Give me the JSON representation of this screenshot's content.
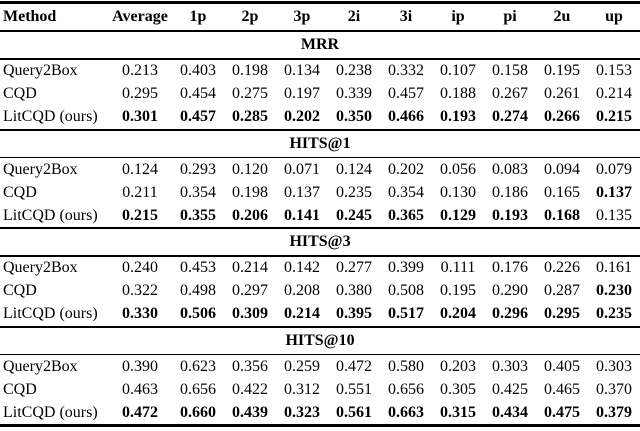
{
  "colors": {
    "text": "#000000",
    "background": "#ffffff",
    "rule": "#000000"
  },
  "table": {
    "columns": [
      "Method",
      "Average",
      "1p",
      "2p",
      "3p",
      "2i",
      "3i",
      "ip",
      "pi",
      "2u",
      "up"
    ],
    "sections": [
      {
        "title": "MRR",
        "rows": [
          {
            "method": "Query2Box",
            "values": [
              "0.213",
              "0.403",
              "0.198",
              "0.134",
              "0.238",
              "0.332",
              "0.107",
              "0.158",
              "0.195",
              "0.153"
            ],
            "bold": [
              0,
              0,
              0,
              0,
              0,
              0,
              0,
              0,
              0,
              0
            ]
          },
          {
            "method": "CQD",
            "values": [
              "0.295",
              "0.454",
              "0.275",
              "0.197",
              "0.339",
              "0.457",
              "0.188",
              "0.267",
              "0.261",
              "0.214"
            ],
            "bold": [
              0,
              0,
              0,
              0,
              0,
              0,
              0,
              0,
              0,
              0
            ]
          },
          {
            "method": "LitCQD (ours)",
            "values": [
              "0.301",
              "0.457",
              "0.285",
              "0.202",
              "0.350",
              "0.466",
              "0.193",
              "0.274",
              "0.266",
              "0.215"
            ],
            "bold": [
              1,
              1,
              1,
              1,
              1,
              1,
              1,
              1,
              1,
              1
            ]
          }
        ]
      },
      {
        "title": "HITS@1",
        "rows": [
          {
            "method": "Query2Box",
            "values": [
              "0.124",
              "0.293",
              "0.120",
              "0.071",
              "0.124",
              "0.202",
              "0.056",
              "0.083",
              "0.094",
              "0.079"
            ],
            "bold": [
              0,
              0,
              0,
              0,
              0,
              0,
              0,
              0,
              0,
              0
            ]
          },
          {
            "method": "CQD",
            "values": [
              "0.211",
              "0.354",
              "0.198",
              "0.137",
              "0.235",
              "0.354",
              "0.130",
              "0.186",
              "0.165",
              "0.137"
            ],
            "bold": [
              0,
              0,
              0,
              0,
              0,
              0,
              0,
              0,
              0,
              1
            ]
          },
          {
            "method": "LitCQD (ours)",
            "values": [
              "0.215",
              "0.355",
              "0.206",
              "0.141",
              "0.245",
              "0.365",
              "0.129",
              "0.193",
              "0.168",
              "0.135"
            ],
            "bold": [
              1,
              1,
              1,
              1,
              1,
              1,
              1,
              1,
              1,
              0
            ]
          }
        ]
      },
      {
        "title": "HITS@3",
        "rows": [
          {
            "method": "Query2Box",
            "values": [
              "0.240",
              "0.453",
              "0.214",
              "0.142",
              "0.277",
              "0.399",
              "0.111",
              "0.176",
              "0.226",
              "0.161"
            ],
            "bold": [
              0,
              0,
              0,
              0,
              0,
              0,
              0,
              0,
              0,
              0
            ]
          },
          {
            "method": "CQD",
            "values": [
              "0.322",
              "0.498",
              "0.297",
              "0.208",
              "0.380",
              "0.508",
              "0.195",
              "0.290",
              "0.287",
              "0.230"
            ],
            "bold": [
              0,
              0,
              0,
              0,
              0,
              0,
              0,
              0,
              0,
              1
            ]
          },
          {
            "method": "LitCQD (ours)",
            "values": [
              "0.330",
              "0.506",
              "0.309",
              "0.214",
              "0.395",
              "0.517",
              "0.204",
              "0.296",
              "0.295",
              "0.235"
            ],
            "bold": [
              1,
              1,
              1,
              1,
              1,
              1,
              1,
              1,
              1,
              1
            ]
          }
        ]
      },
      {
        "title": "HITS@10",
        "rows": [
          {
            "method": "Query2Box",
            "values": [
              "0.390",
              "0.623",
              "0.356",
              "0.259",
              "0.472",
              "0.580",
              "0.203",
              "0.303",
              "0.405",
              "0.303"
            ],
            "bold": [
              0,
              0,
              0,
              0,
              0,
              0,
              0,
              0,
              0,
              0
            ]
          },
          {
            "method": "CQD",
            "values": [
              "0.463",
              "0.656",
              "0.422",
              "0.312",
              "0.551",
              "0.656",
              "0.305",
              "0.425",
              "0.465",
              "0.370"
            ],
            "bold": [
              0,
              0,
              0,
              0,
              0,
              0,
              0,
              0,
              0,
              0
            ]
          },
          {
            "method": "LitCQD (ours)",
            "values": [
              "0.472",
              "0.660",
              "0.439",
              "0.323",
              "0.561",
              "0.663",
              "0.315",
              "0.434",
              "0.475",
              "0.379"
            ],
            "bold": [
              1,
              1,
              1,
              1,
              1,
              1,
              1,
              1,
              1,
              1
            ]
          }
        ]
      }
    ]
  }
}
